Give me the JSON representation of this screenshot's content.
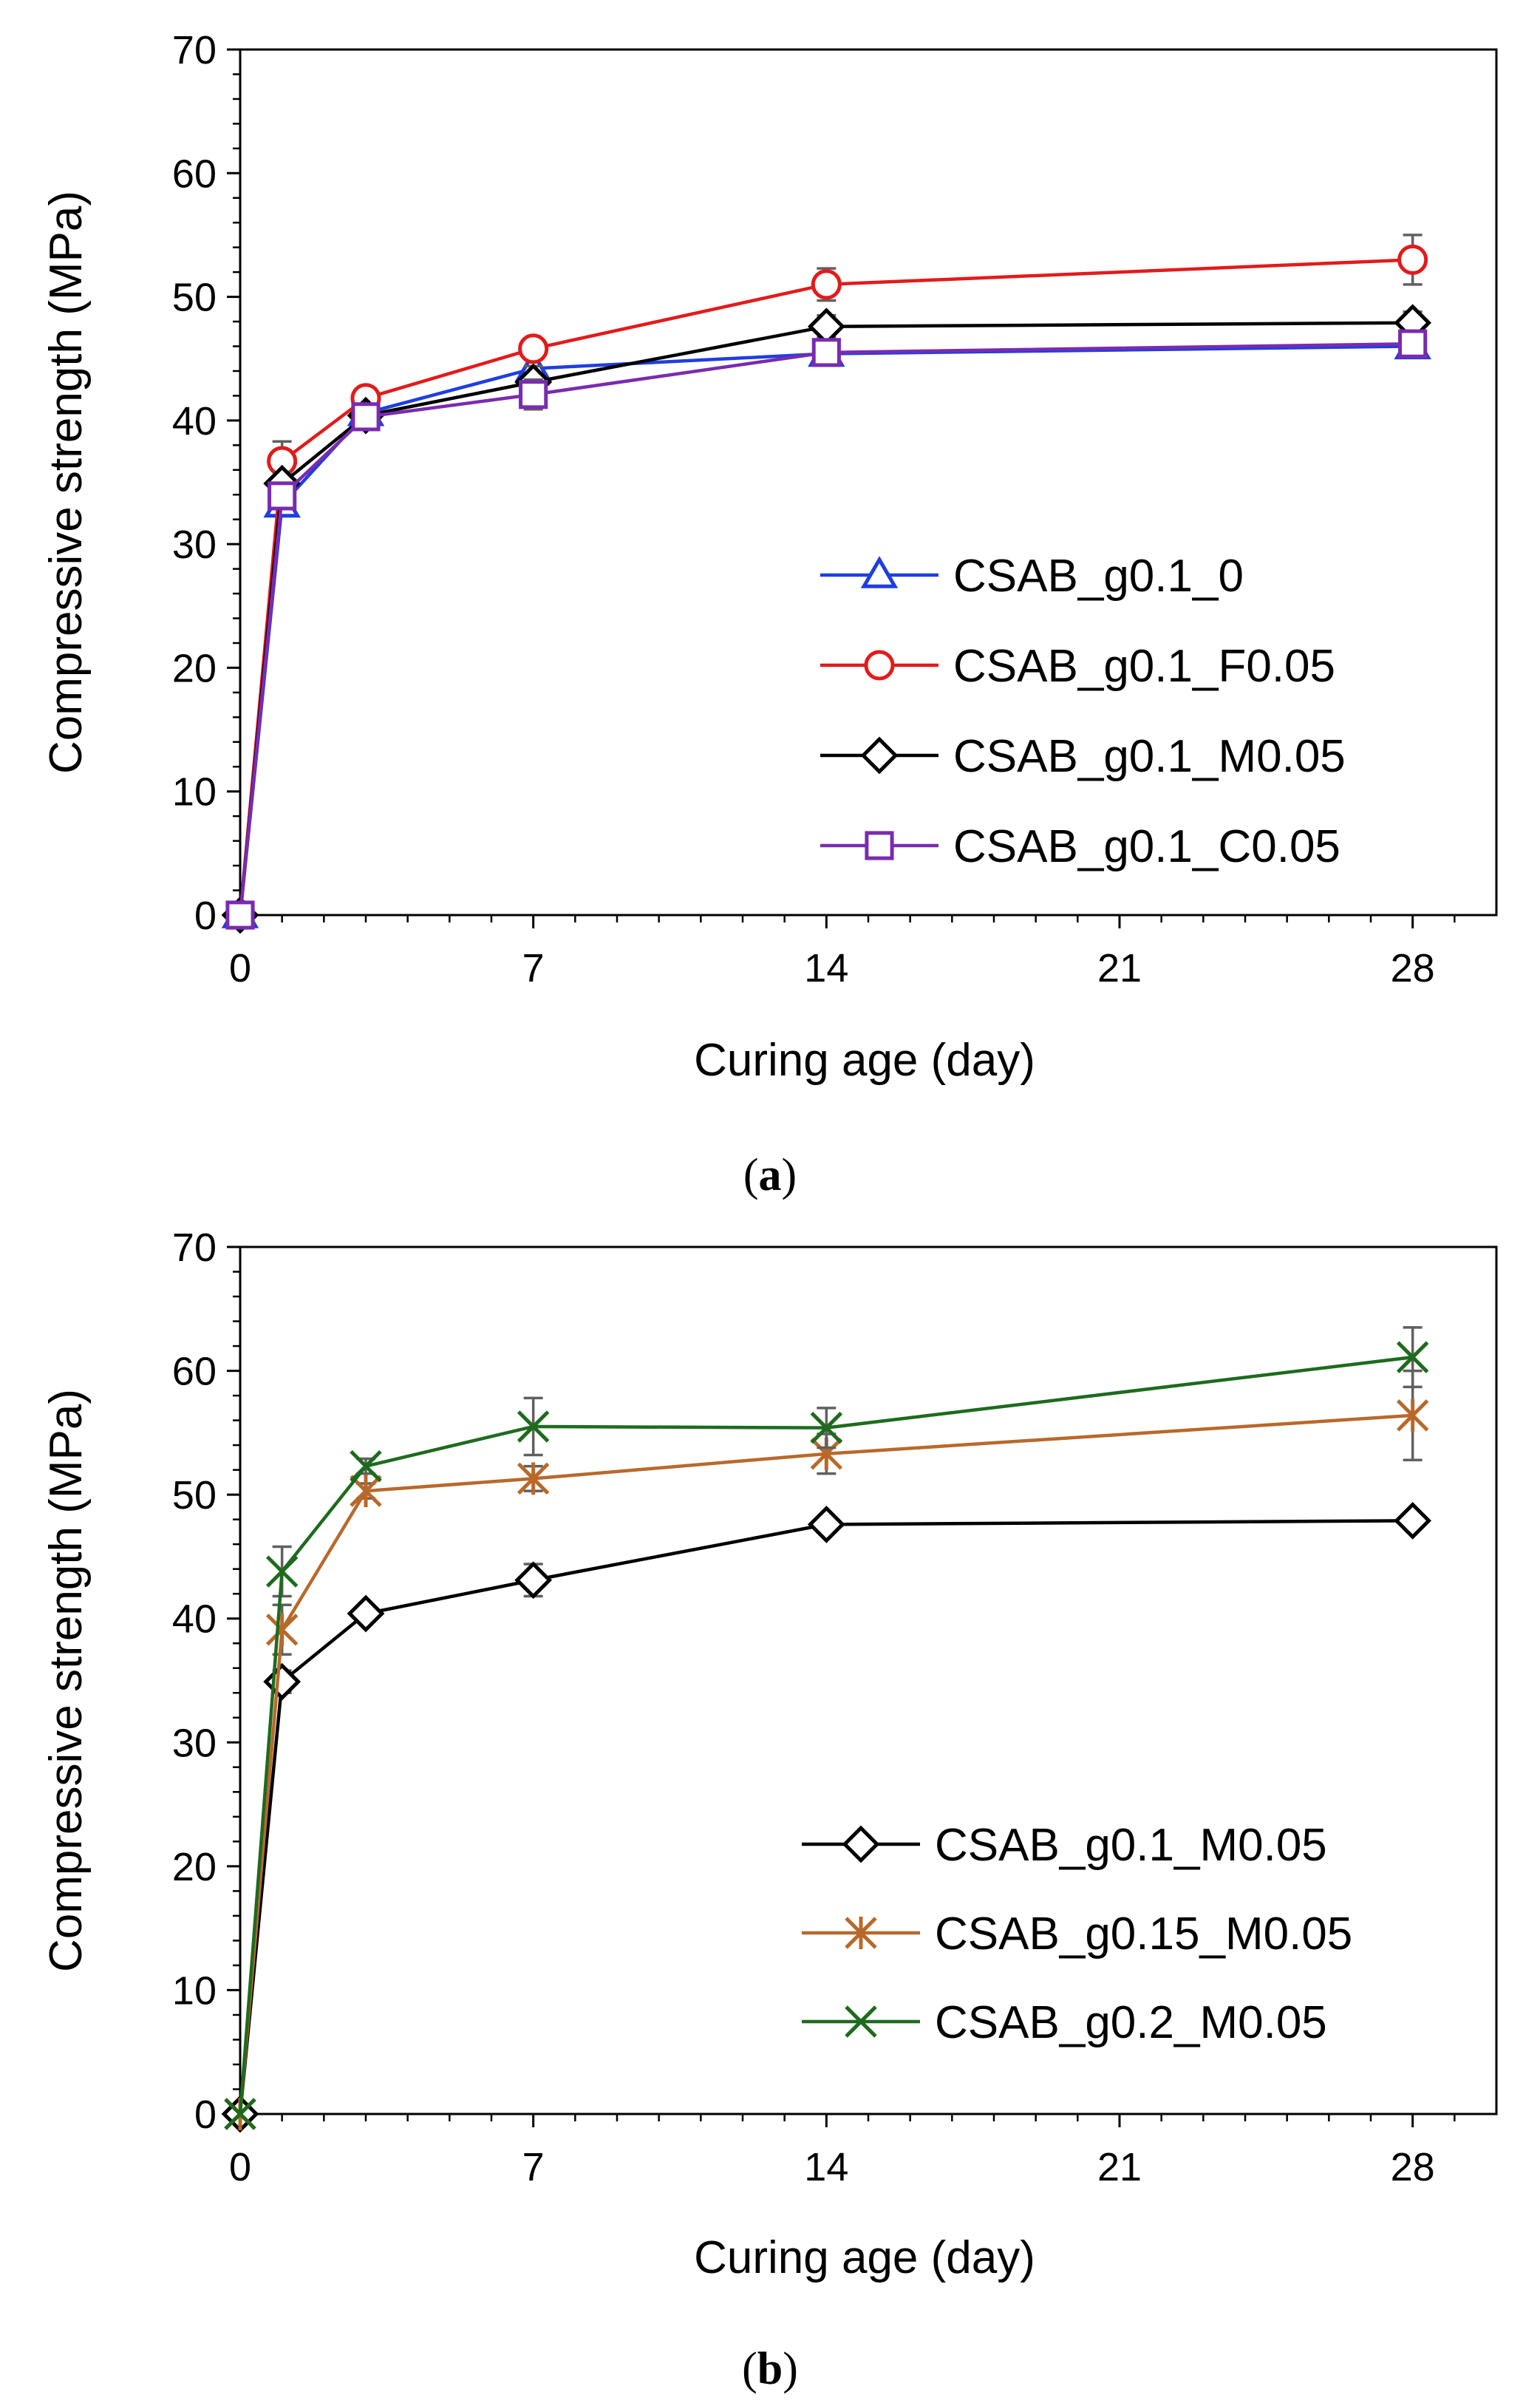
{
  "chart_data": [
    {
      "type": "line",
      "panel_label": "(a)",
      "panel_letter": "a",
      "xlabel": "Curing age (day)",
      "ylabel": "Compressive strength (MPa)",
      "xlim": [
        0,
        30
      ],
      "ylim": [
        0,
        70
      ],
      "xticks": [
        0,
        7,
        14,
        21,
        28
      ],
      "yticks": [
        0,
        10,
        20,
        30,
        40,
        50,
        60,
        70
      ],
      "legend_position": "lower-right",
      "x": [
        0,
        1,
        3,
        7,
        14,
        28
      ],
      "series": [
        {
          "name": "CSAB_g0.1_0",
          "marker": "triangle",
          "color": "#1f3ee0",
          "values": [
            0,
            33.2,
            40.6,
            44.2,
            45.4,
            46.0
          ],
          "errors": [
            0,
            0.8,
            0.7,
            0.8,
            0.9,
            0.9
          ]
        },
        {
          "name": "CSAB_g0.1_F0.05",
          "marker": "circle",
          "color": "#e21b1b",
          "values": [
            0,
            36.7,
            41.8,
            45.8,
            51.0,
            53.0
          ],
          "errors": [
            0,
            1.6,
            0.6,
            0.7,
            1.3,
            2.0
          ]
        },
        {
          "name": "CSAB_g0.1_M0.05",
          "marker": "diamond",
          "color": "#000000",
          "values": [
            0,
            34.9,
            40.4,
            43.1,
            47.6,
            47.9
          ],
          "errors": [
            0,
            0.9,
            0.6,
            1.3,
            0.9,
            0.9
          ]
        },
        {
          "name": "CSAB_g0.1_C0.05",
          "marker": "square",
          "color": "#7a2bb0",
          "values": [
            0,
            33.9,
            40.3,
            42.1,
            45.5,
            46.2
          ],
          "errors": [
            0,
            0.8,
            0.6,
            1.2,
            0.9,
            0.9
          ]
        }
      ]
    },
    {
      "type": "line",
      "panel_label": "(b)",
      "panel_letter": "b",
      "xlabel": "Curing age (day)",
      "ylabel": "Compressive strength (MPa)",
      "xlim": [
        0,
        30
      ],
      "ylim": [
        0,
        70
      ],
      "xticks": [
        0,
        7,
        14,
        21,
        28
      ],
      "yticks": [
        0,
        10,
        20,
        30,
        40,
        50,
        60,
        70
      ],
      "legend_position": "lower-right",
      "x": [
        0,
        1,
        3,
        7,
        14,
        28
      ],
      "series": [
        {
          "name": "CSAB_g0.1_M0.05",
          "marker": "diamond",
          "color": "#000000",
          "values": [
            0,
            34.9,
            40.4,
            43.1,
            47.6,
            47.9
          ],
          "errors": [
            0,
            0.9,
            0.6,
            1.3,
            0.6,
            0.6
          ]
        },
        {
          "name": "CSAB_g0.15_M0.05",
          "marker": "asterisk",
          "color": "#b8692a",
          "values": [
            0,
            39.1,
            50.3,
            51.3,
            53.3,
            56.4
          ],
          "errors": [
            0,
            2.0,
            0.6,
            1.0,
            1.6,
            3.6
          ]
        },
        {
          "name": "CSAB_g0.2_M0.05",
          "marker": "x",
          "color": "#1e6b1e",
          "values": [
            0,
            43.8,
            52.3,
            55.5,
            55.4,
            61.1
          ],
          "errors": [
            0,
            2.0,
            0.6,
            2.3,
            1.6,
            2.4
          ]
        }
      ]
    }
  ]
}
